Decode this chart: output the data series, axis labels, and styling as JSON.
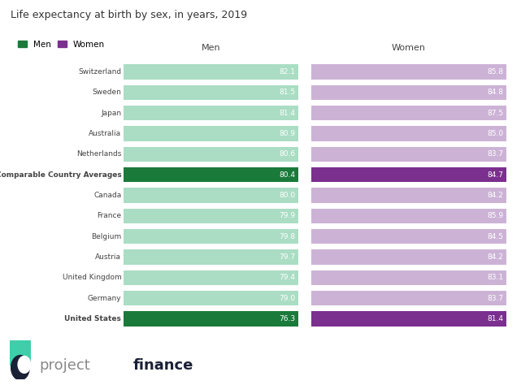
{
  "title": "Life expectancy at birth by sex, in years, 2019",
  "countries": [
    "Switzerland",
    "Sweden",
    "Japan",
    "Australia",
    "Netherlands",
    "Comparable Country Averages",
    "Canada",
    "France",
    "Belgium",
    "Austria",
    "United Kingdom",
    "Germany",
    "United States"
  ],
  "men_values": [
    82.1,
    81.5,
    81.4,
    80.9,
    80.6,
    80.4,
    80.0,
    79.9,
    79.8,
    79.7,
    79.4,
    79.0,
    76.3
  ],
  "women_values": [
    85.8,
    84.8,
    87.5,
    85.0,
    83.7,
    84.7,
    84.2,
    85.9,
    84.5,
    84.2,
    83.1,
    83.7,
    81.4
  ],
  "men_color_normal": "#aaddc4",
  "men_color_highlight": "#1a7a3a",
  "women_color_normal": "#ccb3d6",
  "women_color_highlight": "#7b2f8e",
  "highlight_rows": [
    5,
    12
  ],
  "men_label": "Men",
  "women_label": "Women",
  "background_color": "#ffffff",
  "text_color": "#444444",
  "bar_text_color": "#ffffff",
  "logo_project_color": "#888888",
  "logo_finance_color": "#1a2035",
  "logo_icon_green": "#3ecfaa",
  "logo_icon_dark": "#1a2035"
}
